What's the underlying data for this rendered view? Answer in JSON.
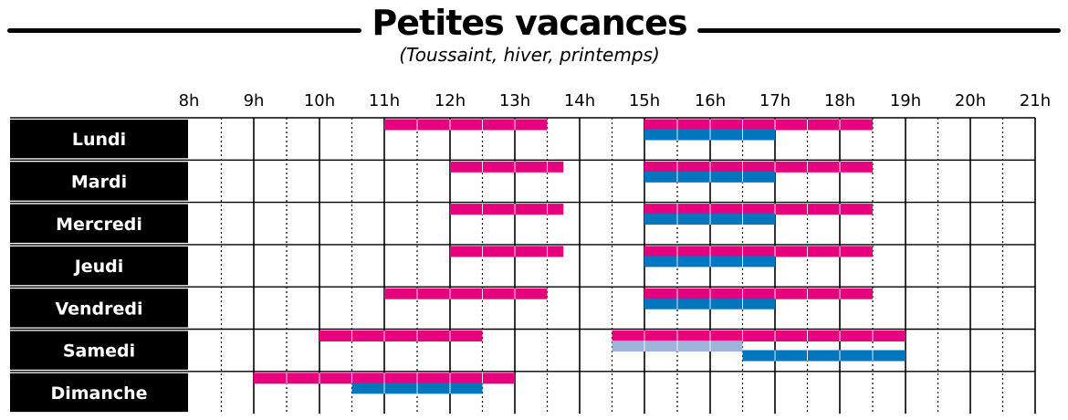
{
  "title": "Petites vacances",
  "subtitle": "(Toussaint, hiver, printemps)",
  "colors": {
    "pink": "#e6007e",
    "blue": "#0076be",
    "light_blue": "#9eb3d8",
    "label_bg": "#000000",
    "grid": "#000000"
  },
  "chart_data": {
    "type": "gantt",
    "x_axis": {
      "ticks": [
        "8h",
        "9h",
        "10h",
        "11h",
        "12h",
        "13h",
        "14h",
        "15h",
        "16h",
        "17h",
        "18h",
        "19h",
        "20h",
        "21h"
      ],
      "range": [
        8,
        21
      ],
      "grid": "solid lines on the hour, dotted lines on the half hour"
    },
    "days": [
      {
        "name": "Lundi",
        "pink": [
          [
            11,
            13.5
          ],
          [
            15,
            18.5
          ]
        ],
        "blue": [
          [
            15,
            17
          ]
        ],
        "light_blue": []
      },
      {
        "name": "Mardi",
        "pink": [
          [
            12,
            13.75
          ],
          [
            15,
            18.5
          ]
        ],
        "blue": [
          [
            15,
            17
          ]
        ],
        "light_blue": []
      },
      {
        "name": "Mercredi",
        "pink": [
          [
            12,
            13.75
          ],
          [
            15,
            18.5
          ]
        ],
        "blue": [
          [
            15,
            17
          ]
        ],
        "light_blue": []
      },
      {
        "name": "Jeudi",
        "pink": [
          [
            12,
            13.75
          ],
          [
            15,
            18.5
          ]
        ],
        "blue": [
          [
            15,
            17
          ]
        ],
        "light_blue": []
      },
      {
        "name": "Vendredi",
        "pink": [
          [
            11,
            13.5
          ],
          [
            15,
            18.5
          ]
        ],
        "blue": [
          [
            15,
            17
          ]
        ],
        "light_blue": []
      },
      {
        "name": "Samedi",
        "pink": [
          [
            10,
            12.5
          ],
          [
            14.5,
            19
          ]
        ],
        "blue": [
          [
            16.5,
            19
          ]
        ],
        "light_blue": [
          [
            14.5,
            16.5
          ]
        ]
      },
      {
        "name": "Dimanche",
        "pink": [
          [
            9,
            13
          ]
        ],
        "blue": [
          [
            10.5,
            12.5
          ]
        ],
        "light_blue": []
      }
    ]
  }
}
